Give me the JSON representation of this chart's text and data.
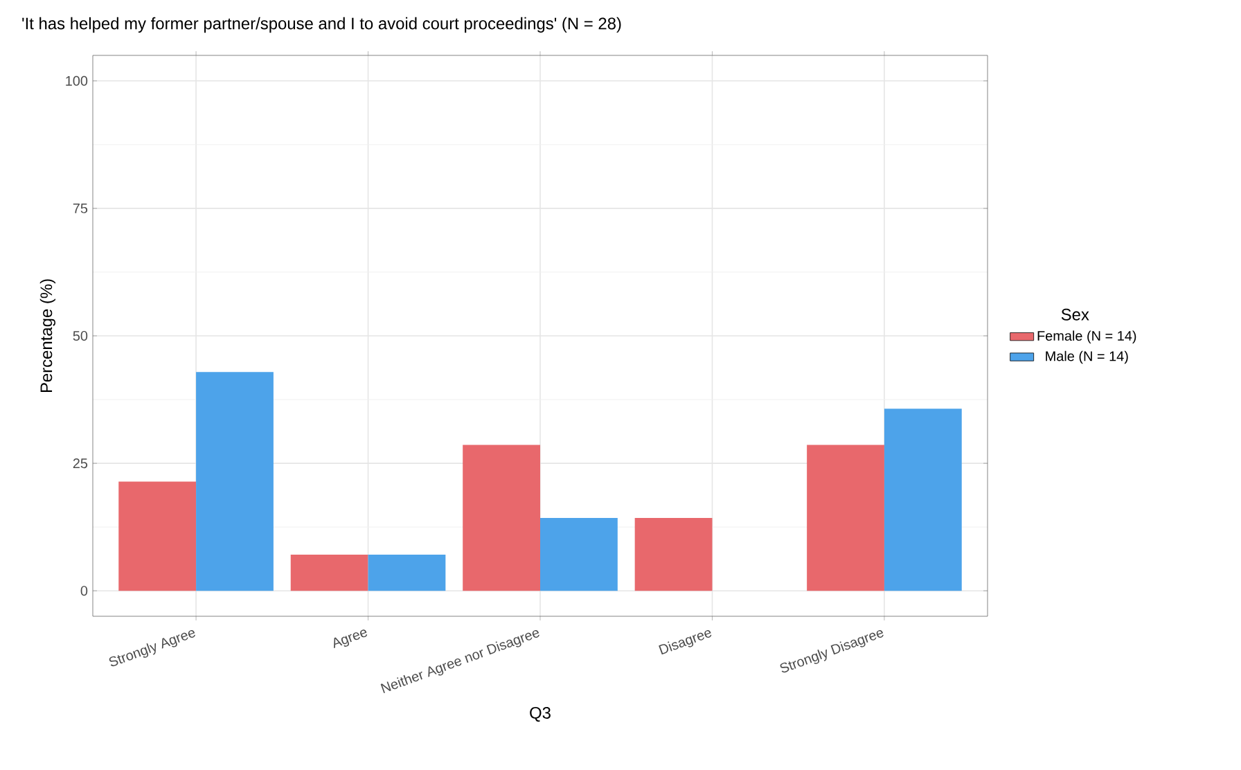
{
  "chart_data": {
    "type": "bar",
    "title": "'It has helped my former partner/spouse and I to avoid court proceedings' (N = 28)",
    "xlabel": "Q3",
    "ylabel": "Percentage (%)",
    "legend_title": "Sex",
    "categories": [
      "Strongly Agree",
      "Agree",
      "Neither Agree nor Disagree",
      "Disagree",
      "Strongly Disagree"
    ],
    "series": [
      {
        "name": "Female (N = 14)",
        "color": "#e8686c",
        "values": [
          21.4,
          7.1,
          28.6,
          14.3,
          28.6
        ]
      },
      {
        "name": "Male (N = 14)",
        "color": "#4da3ea",
        "values": [
          42.9,
          7.1,
          14.3,
          null,
          35.7
        ]
      }
    ],
    "ylim": [
      -5,
      105
    ],
    "yticks": [
      0,
      25,
      50,
      75,
      100
    ],
    "grid": true,
    "legend": "right"
  }
}
